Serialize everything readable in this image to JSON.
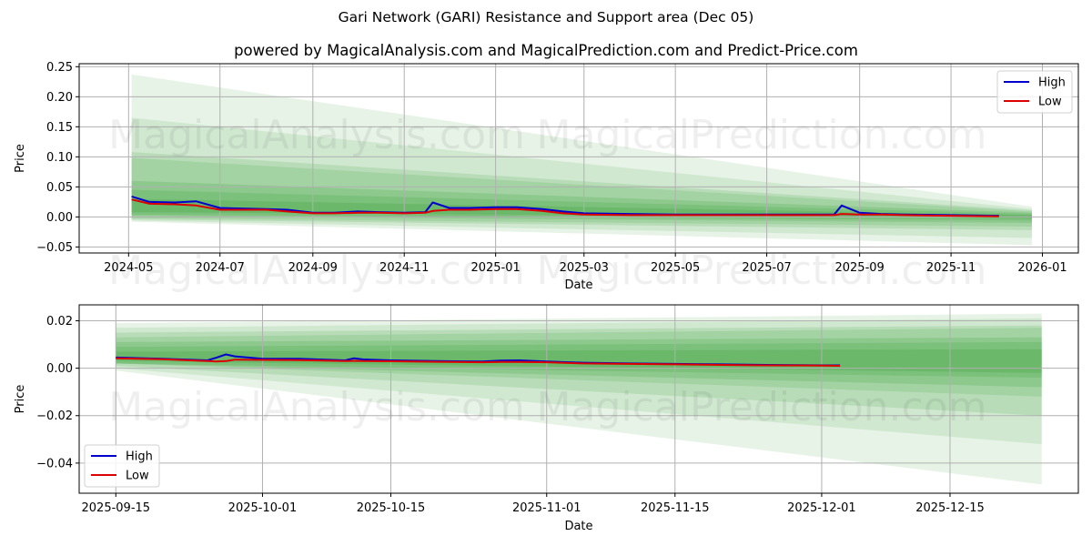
{
  "suptitle": "Gari Network (GARI) Resistance and Support area (Dec 05)",
  "subtitle": "powered by MagicalAnalysis.com and MagicalPrediction.com and Predict-Price.com",
  "watermarks": [
    "MagicalAnalysis.com",
    "MagicalPrediction.com"
  ],
  "colors": {
    "high": "#0000cc",
    "low": "#dd0000",
    "band": "#2e9a2e",
    "grid": "#b0b0b0"
  },
  "chart_data": [
    {
      "type": "line",
      "title": "",
      "xlabel": "Date",
      "ylabel": "Price",
      "ylim": [
        -0.06,
        0.255
      ],
      "grid": true,
      "legend_position": "upper right",
      "legend": [
        "High",
        "Low"
      ],
      "x_ticks": [
        "2024-05",
        "2024-07",
        "2024-09",
        "2024-11",
        "2025-01",
        "2025-03",
        "2025-05",
        "2025-07",
        "2025-09",
        "2025-11",
        "2026-01"
      ],
      "y_ticks": [
        "0.25",
        "0.20",
        "0.15",
        "0.10",
        "0.05",
        "0.00",
        "-0.05"
      ],
      "x": [
        "2024-05-03",
        "2024-05-15",
        "2024-06-01",
        "2024-06-15",
        "2024-07-01",
        "2024-07-15",
        "2024-08-01",
        "2024-08-15",
        "2024-09-01",
        "2024-09-15",
        "2024-10-01",
        "2024-10-15",
        "2024-11-01",
        "2024-11-15",
        "2024-11-20",
        "2024-12-01",
        "2024-12-15",
        "2025-01-01",
        "2025-01-15",
        "2025-02-01",
        "2025-02-15",
        "2025-03-01",
        "2025-04-01",
        "2025-05-01",
        "2025-06-01",
        "2025-07-01",
        "2025-08-01",
        "2025-08-15",
        "2025-08-20",
        "2025-09-01",
        "2025-09-15",
        "2025-10-01",
        "2025-11-01",
        "2025-12-03"
      ],
      "series": [
        {
          "name": "High",
          "values": [
            0.034,
            0.025,
            0.024,
            0.026,
            0.015,
            0.014,
            0.013,
            0.012,
            0.007,
            0.007,
            0.009,
            0.008,
            0.007,
            0.008,
            0.024,
            0.015,
            0.015,
            0.016,
            0.016,
            0.013,
            0.009,
            0.006,
            0.005,
            0.004,
            0.004,
            0.004,
            0.004,
            0.004,
            0.019,
            0.007,
            0.005,
            0.004,
            0.003,
            0.002
          ]
        },
        {
          "name": "Low",
          "values": [
            0.029,
            0.022,
            0.021,
            0.019,
            0.012,
            0.012,
            0.012,
            0.009,
            0.006,
            0.006,
            0.007,
            0.007,
            0.006,
            0.007,
            0.01,
            0.012,
            0.012,
            0.013,
            0.013,
            0.01,
            0.006,
            0.004,
            0.003,
            0.003,
            0.003,
            0.003,
            0.003,
            0.003,
            0.005,
            0.004,
            0.004,
            0.003,
            0.002,
            0.001
          ]
        }
      ],
      "bands": {
        "x_start": "2024-05-03",
        "x_end": "2025-12-25",
        "layers": [
          {
            "top": [
              0.237,
              0.017
            ],
            "bottom": [
              -0.008,
              -0.047
            ],
            "opacity": 0.12
          },
          {
            "top": [
              0.165,
              0.013
            ],
            "bottom": [
              -0.006,
              -0.035
            ],
            "opacity": 0.12
          },
          {
            "top": [
              0.108,
              0.011
            ],
            "bottom": [
              -0.004,
              -0.022
            ],
            "opacity": 0.15
          },
          {
            "top": [
              0.098,
              0.009
            ],
            "bottom": [
              -0.002,
              -0.016
            ],
            "opacity": 0.15
          },
          {
            "top": [
              0.06,
              0.007
            ],
            "bottom": [
              0.002,
              -0.01
            ],
            "opacity": 0.18
          },
          {
            "top": [
              0.045,
              0.005
            ],
            "bottom": [
              0.004,
              -0.006
            ],
            "opacity": 0.18
          },
          {
            "top": [
              0.03,
              0.003
            ],
            "bottom": [
              0.008,
              -0.002
            ],
            "opacity": 0.2
          }
        ]
      }
    },
    {
      "type": "line",
      "title": "",
      "xlabel": "Date",
      "ylabel": "Price",
      "ylim": [
        -0.0527,
        0.0267
      ],
      "grid": true,
      "legend_position": "lower left",
      "legend": [
        "High",
        "Low"
      ],
      "x_ticks": [
        "2025-09-15",
        "2025-10-01",
        "2025-10-15",
        "2025-11-01",
        "2025-11-15",
        "2025-12-01",
        "2025-12-15"
      ],
      "y_ticks": [
        "0.02",
        "0.00",
        "-0.02",
        "-0.04"
      ],
      "x": [
        "2025-09-15",
        "2025-09-20",
        "2025-09-25",
        "2025-09-26",
        "2025-09-27",
        "2025-09-28",
        "2025-10-01",
        "2025-10-05",
        "2025-10-10",
        "2025-10-11",
        "2025-10-12",
        "2025-10-15",
        "2025-10-20",
        "2025-10-25",
        "2025-10-27",
        "2025-10-29",
        "2025-11-01",
        "2025-11-05",
        "2025-11-10",
        "2025-11-15",
        "2025-11-20",
        "2025-11-25",
        "2025-12-01",
        "2025-12-03"
      ],
      "series": [
        {
          "name": "High",
          "values": [
            0.0045,
            0.004,
            0.0033,
            0.0045,
            0.0058,
            0.005,
            0.004,
            0.004,
            0.0033,
            0.0042,
            0.0037,
            0.0033,
            0.003,
            0.0028,
            0.0032,
            0.0033,
            0.0028,
            0.0023,
            0.002,
            0.0018,
            0.0016,
            0.0014,
            0.0012,
            0.0012
          ]
        },
        {
          "name": "Low",
          "values": [
            0.0042,
            0.0038,
            0.003,
            0.0028,
            0.003,
            0.0036,
            0.0035,
            0.0034,
            0.003,
            0.0031,
            0.003,
            0.0029,
            0.0027,
            0.0025,
            0.0026,
            0.0026,
            0.0025,
            0.002,
            0.0018,
            0.0016,
            0.0014,
            0.0012,
            0.0011,
            0.001
          ]
        }
      ],
      "bands": {
        "x_start": "2025-09-15",
        "x_end": "2025-12-25",
        "layers": [
          {
            "top": [
              0.019,
              0.023
            ],
            "bottom": [
              -0.001,
              -0.049
            ],
            "opacity": 0.12
          },
          {
            "top": [
              0.017,
              0.021
            ],
            "bottom": [
              0.0,
              -0.032
            ],
            "opacity": 0.12
          },
          {
            "top": [
              0.015,
              0.018
            ],
            "bottom": [
              0.001,
              -0.02
            ],
            "opacity": 0.15
          },
          {
            "top": [
              0.013,
              0.017
            ],
            "bottom": [
              0.002,
              -0.012
            ],
            "opacity": 0.15
          },
          {
            "top": [
              0.011,
              0.013
            ],
            "bottom": [
              0.002,
              -0.008
            ],
            "opacity": 0.18
          },
          {
            "top": [
              0.009,
              0.011
            ],
            "bottom": [
              0.002,
              -0.004
            ],
            "opacity": 0.18
          },
          {
            "top": [
              0.007,
              0.008
            ],
            "bottom": [
              0.003,
              -0.002
            ],
            "opacity": 0.2
          }
        ]
      }
    }
  ]
}
